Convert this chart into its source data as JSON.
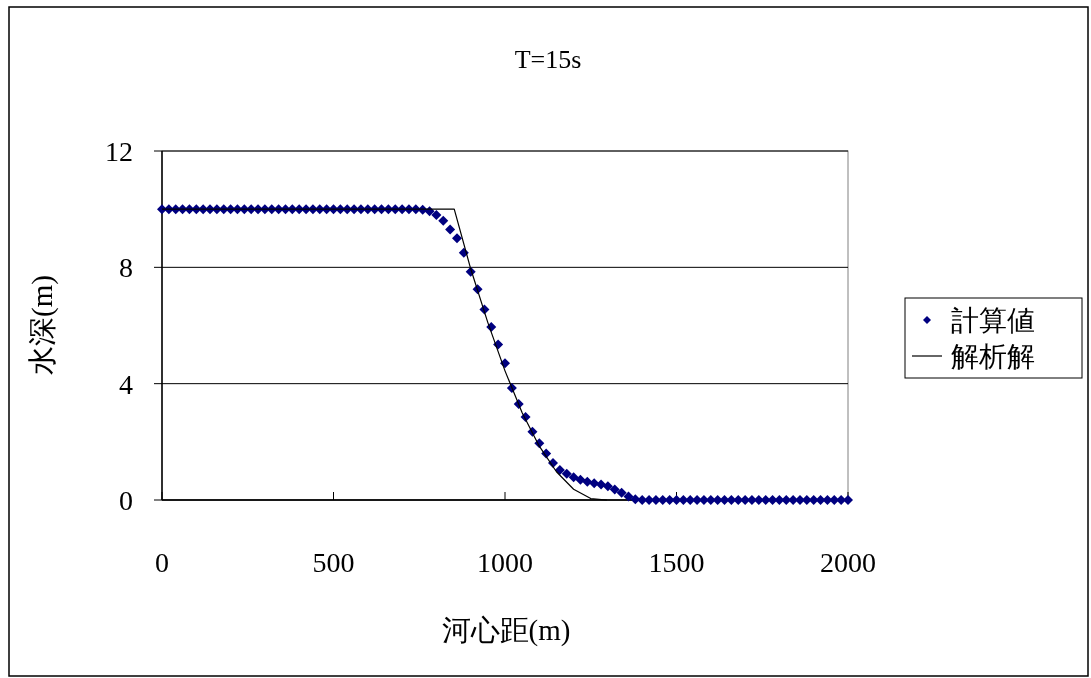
{
  "chart_data": {
    "type": "scatter",
    "title": "T=15s",
    "xlabel": "河心距(m)",
    "ylabel": "水深(m)",
    "xlim": [
      0,
      2000
    ],
    "ylim": [
      0,
      12
    ],
    "xticks": [
      0,
      500,
      1000,
      1500,
      2000
    ],
    "yticks": [
      0,
      4,
      8,
      12
    ],
    "grid": "y",
    "legend": "right",
    "series": [
      {
        "name": "計算値",
        "color": "#000080",
        "marker": "diamond",
        "x": [
          0,
          20,
          40,
          60,
          80,
          100,
          120,
          140,
          160,
          180,
          200,
          220,
          240,
          260,
          280,
          300,
          320,
          340,
          360,
          380,
          400,
          420,
          440,
          460,
          480,
          500,
          520,
          540,
          560,
          580,
          600,
          620,
          640,
          660,
          680,
          700,
          720,
          740,
          760,
          780,
          800,
          820,
          840,
          860,
          880,
          900,
          920,
          940,
          960,
          980,
          1000,
          1020,
          1040,
          1060,
          1080,
          1100,
          1120,
          1140,
          1160,
          1180,
          1200,
          1220,
          1240,
          1260,
          1280,
          1300,
          1320,
          1340,
          1360,
          1380,
          1400,
          1420,
          1440,
          1460,
          1480,
          1500,
          1520,
          1540,
          1560,
          1580,
          1600,
          1620,
          1640,
          1660,
          1680,
          1700,
          1720,
          1740,
          1760,
          1780,
          1800,
          1820,
          1840,
          1860,
          1880,
          1900,
          1920,
          1940,
          1960,
          1980,
          2000
        ],
        "values": [
          10,
          10,
          10,
          10,
          10,
          10,
          10,
          10,
          10,
          10,
          10,
          10,
          10,
          10,
          10,
          10,
          10,
          10,
          10,
          10,
          10,
          10,
          10,
          10,
          10,
          10,
          10,
          10,
          10,
          10,
          10,
          10,
          10,
          10,
          10,
          10,
          10,
          10,
          9.98,
          9.93,
          9.8,
          9.6,
          9.3,
          9.0,
          8.5,
          7.85,
          7.25,
          6.55,
          5.95,
          5.35,
          4.7,
          3.85,
          3.3,
          2.85,
          2.35,
          1.95,
          1.6,
          1.27,
          1.03,
          0.9,
          0.78,
          0.7,
          0.63,
          0.58,
          0.53,
          0.47,
          0.36,
          0.25,
          0.12,
          0.03,
          0,
          0,
          0,
          0,
          0,
          0,
          0,
          0,
          0,
          0,
          0,
          0,
          0,
          0,
          0,
          0,
          0,
          0,
          0,
          0,
          0,
          0,
          0,
          0,
          0,
          0,
          0,
          0,
          0,
          0,
          0
        ]
      },
      {
        "name": "解析解",
        "type": "line",
        "color": "#000000",
        "marker": "none",
        "x": [
          0,
          852,
          900,
          950,
          1000,
          1050,
          1100,
          1150,
          1200,
          1250,
          1297
        ],
        "values": [
          10,
          10,
          7.95,
          6.1,
          4.44,
          3.0,
          1.85,
          0.97,
          0.37,
          0.05,
          0
        ]
      }
    ]
  }
}
